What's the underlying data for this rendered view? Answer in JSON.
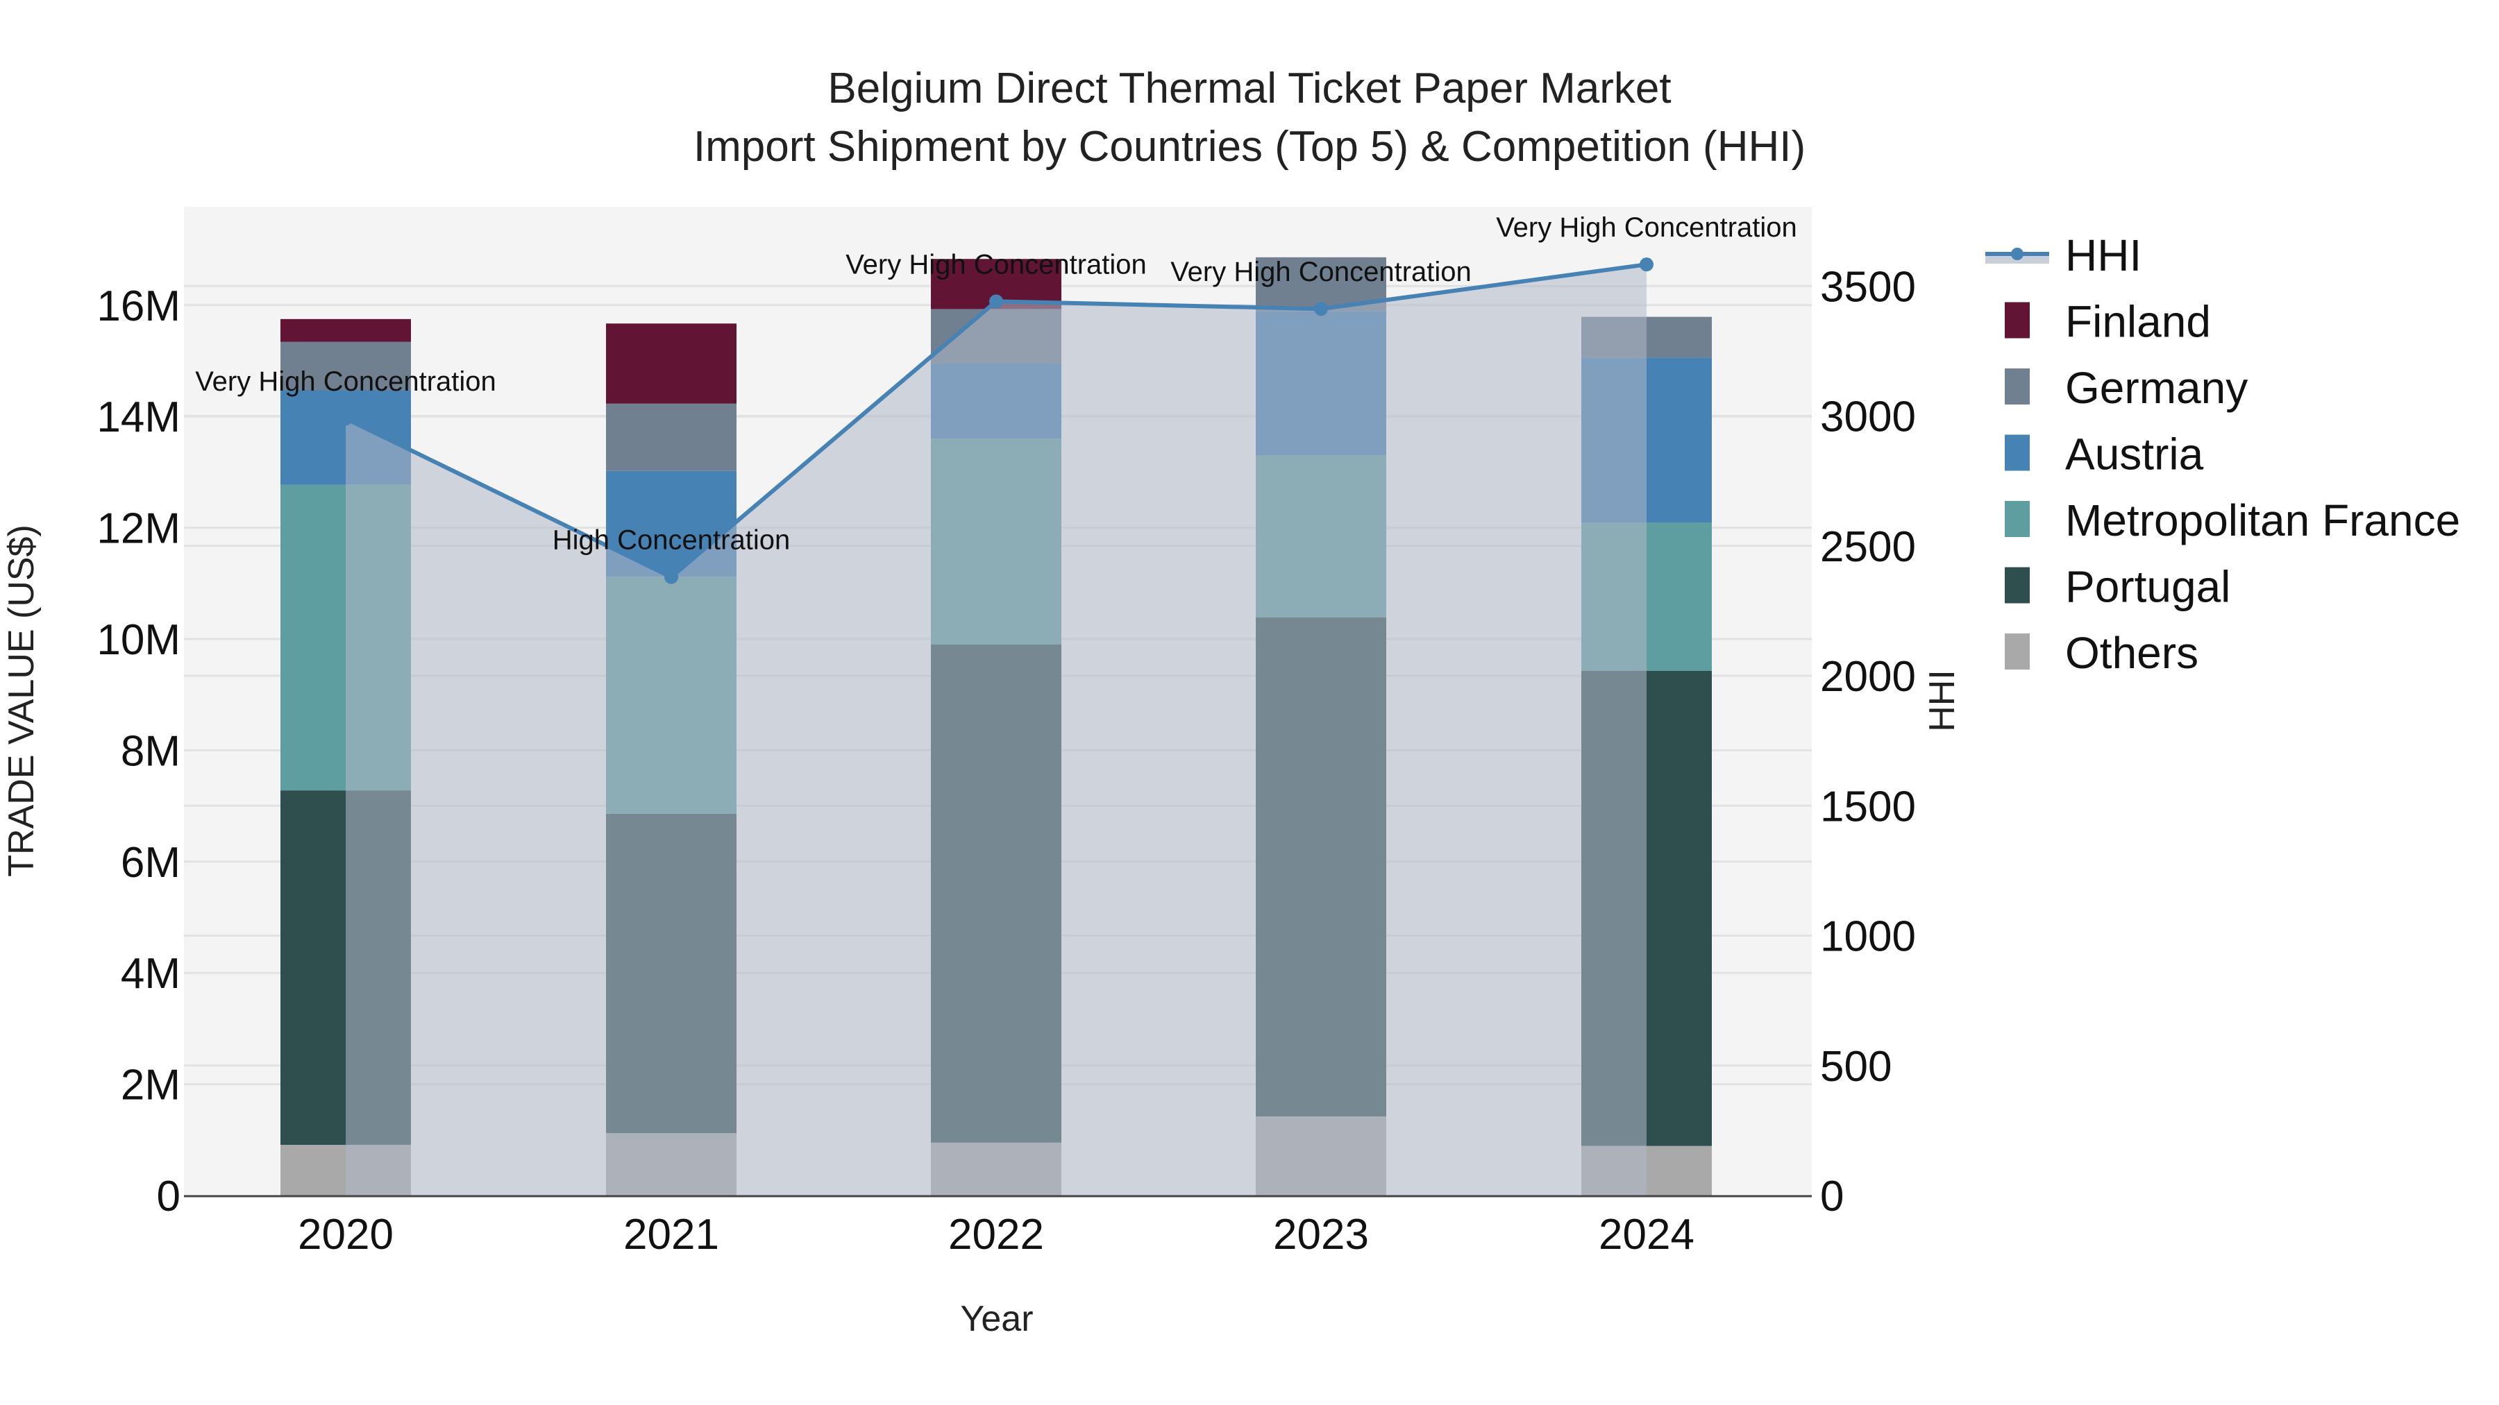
{
  "title": {
    "line1": "Belgium Direct Thermal Ticket Paper Market",
    "line2": "Import Shipment by Countries (Top 5) & Competition (HHI)"
  },
  "axes": {
    "x_title": "Year",
    "y_title": "TRADE VALUE (US$)",
    "y2_title": "HHI",
    "y_ticks": [
      "0",
      "2M",
      "4M",
      "6M",
      "8M",
      "10M",
      "12M",
      "14M",
      "16M"
    ],
    "y2_ticks": [
      "0",
      "500",
      "1000",
      "1500",
      "2000",
      "2500",
      "3000",
      "3500"
    ],
    "x_ticks": [
      "2020",
      "2021",
      "2022",
      "2023",
      "2024"
    ]
  },
  "legend": {
    "items": [
      {
        "label": "HHI",
        "color": "#4682B4",
        "type": "line"
      },
      {
        "label": "Finland",
        "color": "#611434",
        "type": "bar"
      },
      {
        "label": "Germany",
        "color": "#708090",
        "type": "bar"
      },
      {
        "label": "Austria",
        "color": "#4682B4",
        "type": "bar"
      },
      {
        "label": "Metropolitan France",
        "color": "#5F9EA0",
        "type": "bar"
      },
      {
        "label": "Portugal",
        "color": "#2F4F4F",
        "type": "bar"
      },
      {
        "label": "Others",
        "color": "#A9A9A9",
        "type": "bar"
      }
    ]
  },
  "annotations": [
    {
      "year": "2020",
      "text": "Very High Concentration"
    },
    {
      "year": "2021",
      "text": "High Concentration"
    },
    {
      "year": "2022",
      "text": "Very High Concentration"
    },
    {
      "year": "2023",
      "text": "Very High Concentration"
    },
    {
      "year": "2024",
      "text": "Very High Concentration"
    }
  ],
  "chart_data": {
    "type": "bar",
    "stacked": true,
    "title": "Belgium Direct Thermal Ticket Paper Market Import Shipment by Countries (Top 5) & Competition (HHI)",
    "xlabel": "Year",
    "ylabel": "TRADE VALUE (US$)",
    "y2label": "HHI",
    "categories": [
      "2020",
      "2021",
      "2022",
      "2023",
      "2024"
    ],
    "ylim": [
      0,
      17700000
    ],
    "y2lim": [
      0,
      3800
    ],
    "series": [
      {
        "name": "Others",
        "color": "#A9A9A9",
        "values": [
          910000,
          1120000,
          950000,
          1420000,
          890000
        ]
      },
      {
        "name": "Portugal",
        "color": "#2F4F4F",
        "values": [
          6370000,
          5740000,
          8950000,
          8970000,
          8540000
        ]
      },
      {
        "name": "Metropolitan France",
        "color": "#5F9EA0",
        "values": [
          5490000,
          4260000,
          3700000,
          2910000,
          2660000
        ]
      },
      {
        "name": "Austria",
        "color": "#4682B4",
        "values": [
          1700000,
          1900000,
          1350000,
          2590000,
          2970000
        ]
      },
      {
        "name": "Germany",
        "color": "#708090",
        "values": [
          870000,
          1210000,
          980000,
          970000,
          730000
        ]
      },
      {
        "name": "Finland",
        "color": "#611434",
        "values": [
          410000,
          1440000,
          900000,
          0,
          0
        ]
      }
    ],
    "line_series": {
      "name": "HHI",
      "axis": "y2",
      "type": "line+area",
      "color": "#4682B4",
      "values": [
        2990,
        2380,
        3441,
        3412,
        3583
      ],
      "labels": [
        "Very High Concentration",
        "High Concentration",
        "Very High Concentration",
        "Very High Concentration",
        "Very High Concentration"
      ]
    },
    "grid": true,
    "legend_position": "right"
  }
}
